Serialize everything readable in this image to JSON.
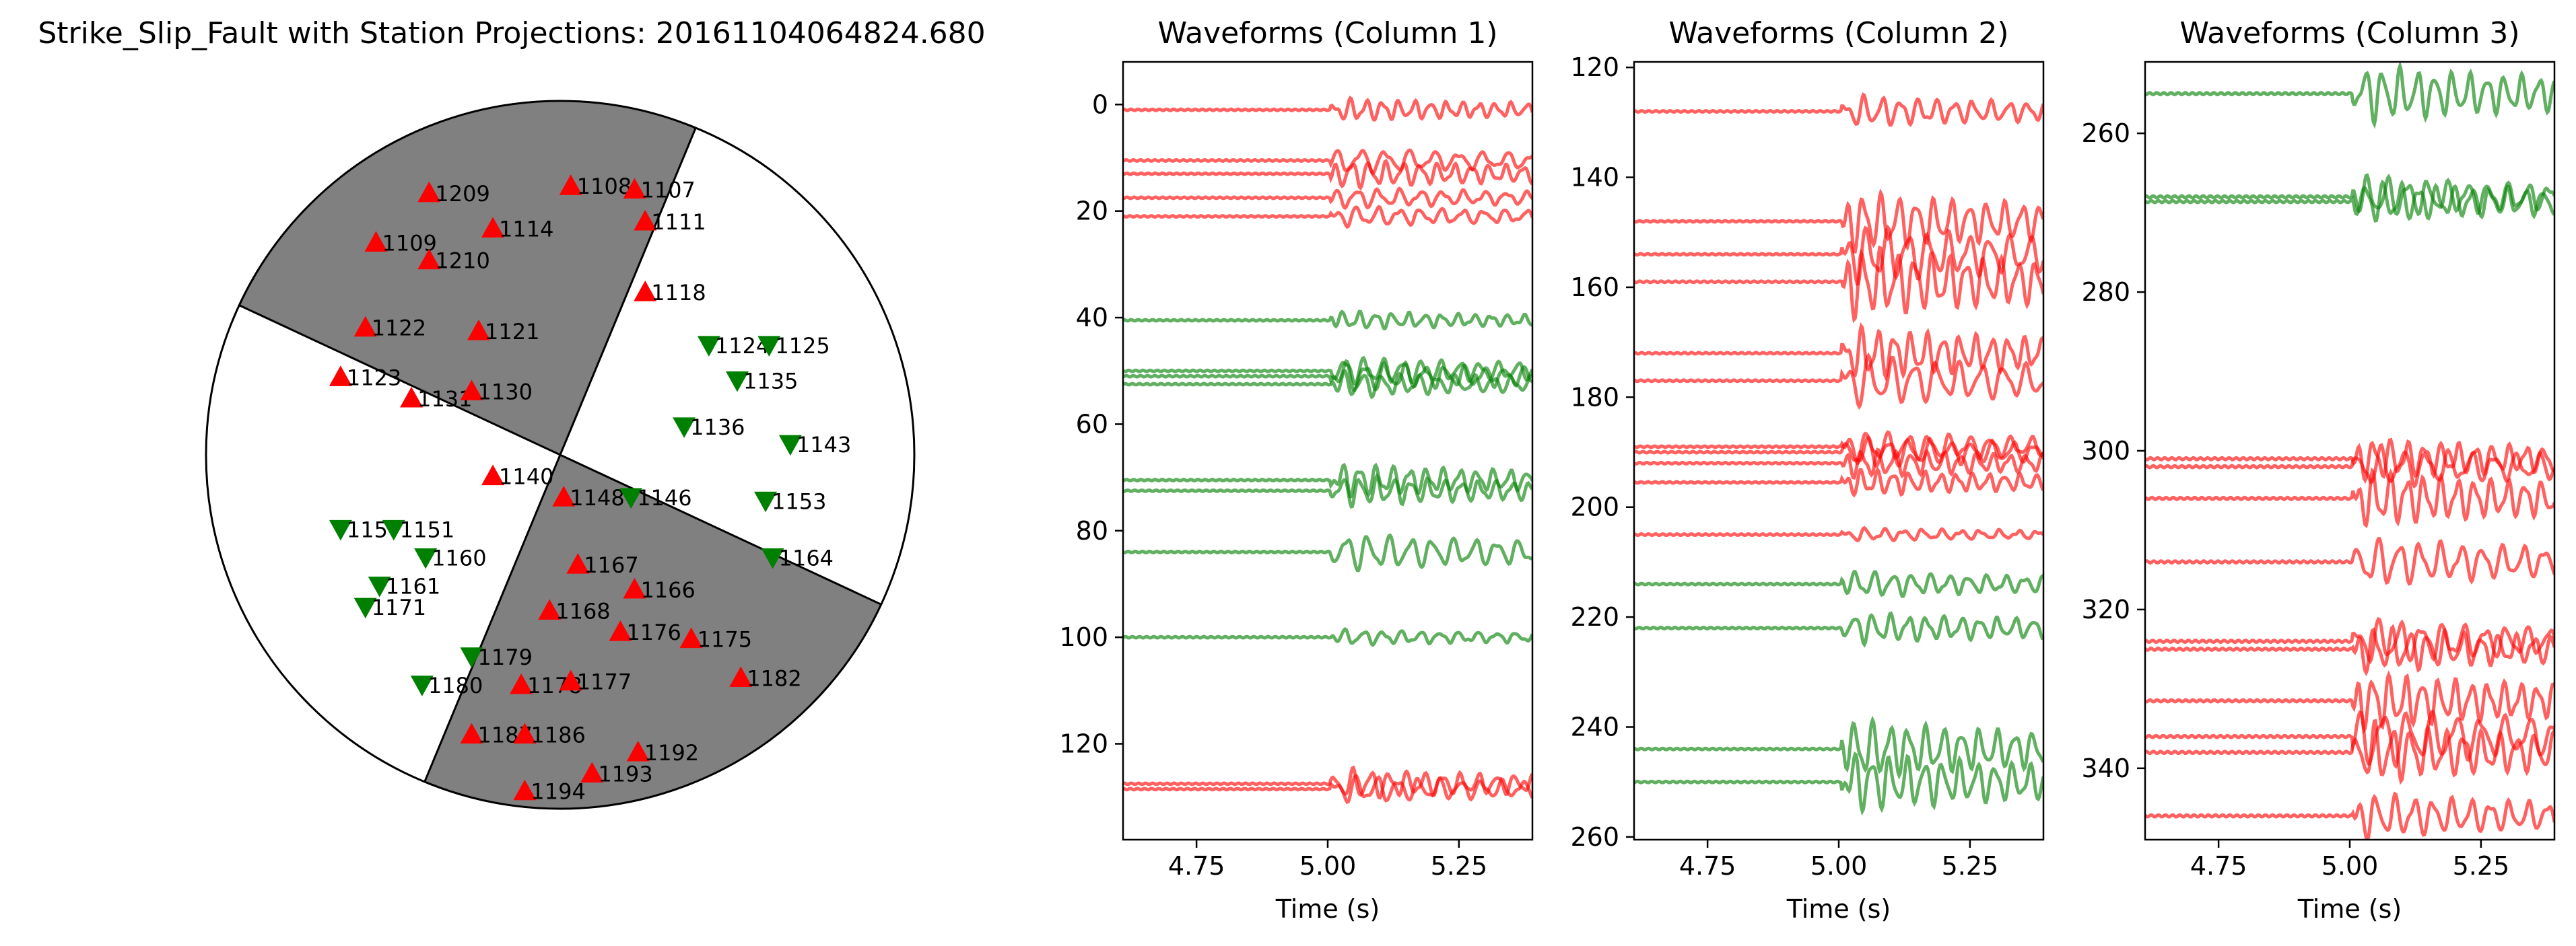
{
  "chart_data": [
    {
      "type": "scatter",
      "title": "Strike_Slip_Fault with Station Projections: 20161104064824.680",
      "colors": {
        "compression": "#ff0000",
        "dilatation": "#008000",
        "shaded_quadrant": "#808080"
      },
      "compression_stations": [
        {
          "label": "1209",
          "x": -0.37,
          "y": 0.74
        },
        {
          "label": "1108",
          "x": 0.03,
          "y": 0.76
        },
        {
          "label": "1107",
          "x": 0.21,
          "y": 0.75
        },
        {
          "label": "1114",
          "x": -0.19,
          "y": 0.64
        },
        {
          "label": "1111",
          "x": 0.24,
          "y": 0.66
        },
        {
          "label": "1109",
          "x": -0.52,
          "y": 0.6
        },
        {
          "label": "1210",
          "x": -0.37,
          "y": 0.55
        },
        {
          "label": "1118",
          "x": 0.24,
          "y": 0.46
        },
        {
          "label": "1122",
          "x": -0.55,
          "y": 0.36
        },
        {
          "label": "1121",
          "x": -0.23,
          "y": 0.35
        },
        {
          "label": "1123",
          "x": -0.62,
          "y": 0.22
        },
        {
          "label": "1131",
          "x": -0.42,
          "y": 0.16
        },
        {
          "label": "1130",
          "x": -0.25,
          "y": 0.18
        },
        {
          "label": "1140",
          "x": -0.19,
          "y": -0.06
        },
        {
          "label": "1148",
          "x": 0.01,
          "y": -0.12
        },
        {
          "label": "1167",
          "x": 0.05,
          "y": -0.31
        },
        {
          "label": "1166",
          "x": 0.21,
          "y": -0.38
        },
        {
          "label": "1168",
          "x": -0.03,
          "y": -0.44
        },
        {
          "label": "1176",
          "x": 0.17,
          "y": -0.5
        },
        {
          "label": "1175",
          "x": 0.37,
          "y": -0.52
        },
        {
          "label": "1182",
          "x": 0.51,
          "y": -0.63
        },
        {
          "label": "1178",
          "x": -0.11,
          "y": -0.65
        },
        {
          "label": "1177",
          "x": 0.03,
          "y": -0.64
        },
        {
          "label": "1187",
          "x": -0.25,
          "y": -0.79
        },
        {
          "label": "1186",
          "x": -0.1,
          "y": -0.79
        },
        {
          "label": "1192",
          "x": 0.22,
          "y": -0.84
        },
        {
          "label": "1193",
          "x": 0.09,
          "y": -0.9
        },
        {
          "label": "1194",
          "x": -0.1,
          "y": -0.95
        }
      ],
      "dilatation_stations": [
        {
          "label": "1124",
          "x": 0.42,
          "y": 0.31
        },
        {
          "label": "1125",
          "x": 0.59,
          "y": 0.31
        },
        {
          "label": "1135",
          "x": 0.5,
          "y": 0.21
        },
        {
          "label": "1136",
          "x": 0.35,
          "y": 0.08
        },
        {
          "label": "1143",
          "x": 0.65,
          "y": 0.03
        },
        {
          "label": "1146",
          "x": 0.2,
          "y": -0.12
        },
        {
          "label": "1153",
          "x": 0.58,
          "y": -0.13
        },
        {
          "label": "1164",
          "x": 0.6,
          "y": -0.29
        },
        {
          "label": "1157",
          "x": -0.62,
          "y": -0.21
        },
        {
          "label": "1151",
          "x": -0.47,
          "y": -0.21
        },
        {
          "label": "1160",
          "x": -0.38,
          "y": -0.29
        },
        {
          "label": "1161",
          "x": -0.51,
          "y": -0.37
        },
        {
          "label": "1171",
          "x": -0.55,
          "y": -0.43
        },
        {
          "label": "1179",
          "x": -0.25,
          "y": -0.57
        },
        {
          "label": "1180",
          "x": -0.39,
          "y": -0.65
        }
      ]
    },
    {
      "type": "line",
      "title": "Waveforms (Column 1)",
      "xlabel": "Time (s)",
      "xlim": [
        4.61,
        5.39
      ],
      "ylim": [
        138,
        -8
      ],
      "xticks": [
        "4.75",
        "5.00",
        "5.25"
      ],
      "yticks": [
        "0",
        "20",
        "40",
        "60",
        "80",
        "100",
        "120"
      ],
      "traces": [
        {
          "offset": 1,
          "polarity": "compression",
          "amp": 1.8
        },
        {
          "offset": 10.5,
          "polarity": "compression",
          "amp": 2.0
        },
        {
          "offset": 13,
          "polarity": "compression",
          "amp": 2.2
        },
        {
          "offset": 17.5,
          "polarity": "compression",
          "amp": 1.6
        },
        {
          "offset": 21,
          "polarity": "compression",
          "amp": 1.6
        },
        {
          "offset": 40.5,
          "polarity": "dilatation",
          "amp": 1.4
        },
        {
          "offset": 50,
          "polarity": "dilatation",
          "amp": 2.2
        },
        {
          "offset": 51,
          "polarity": "dilatation",
          "amp": 2.4
        },
        {
          "offset": 52.5,
          "polarity": "dilatation",
          "amp": 2.0
        },
        {
          "offset": 70.5,
          "polarity": "dilatation",
          "amp": 2.6
        },
        {
          "offset": 72.5,
          "polarity": "dilatation",
          "amp": 2.4
        },
        {
          "offset": 84,
          "polarity": "dilatation",
          "amp": 3.0
        },
        {
          "offset": 100,
          "polarity": "dilatation",
          "amp": 1.2
        },
        {
          "offset": 127.5,
          "polarity": "compression",
          "amp": 2.4
        },
        {
          "offset": 128.5,
          "polarity": "compression",
          "amp": 2.2
        }
      ]
    },
    {
      "type": "line",
      "title": "Waveforms (Column 2)",
      "xlabel": "Time (s)",
      "xlim": [
        4.61,
        5.39
      ],
      "ylim": [
        260.5,
        119
      ],
      "xticks": [
        "4.75",
        "5.00",
        "5.25"
      ],
      "yticks": [
        "120",
        "140",
        "160",
        "180",
        "200",
        "220",
        "240",
        "260"
      ],
      "traces": [
        {
          "offset": 128,
          "polarity": "compression",
          "amp": 2.4
        },
        {
          "offset": 148,
          "polarity": "compression",
          "amp": 4.5
        },
        {
          "offset": 154,
          "polarity": "compression",
          "amp": 4.5
        },
        {
          "offset": 159,
          "polarity": "compression",
          "amp": 5.5
        },
        {
          "offset": 172,
          "polarity": "compression",
          "amp": 4.0
        },
        {
          "offset": 177,
          "polarity": "compression",
          "amp": 4.0
        },
        {
          "offset": 189,
          "polarity": "compression",
          "amp": 2.4
        },
        {
          "offset": 190,
          "polarity": "compression",
          "amp": 2.4
        },
        {
          "offset": 192,
          "polarity": "compression",
          "amp": 2.2
        },
        {
          "offset": 195.5,
          "polarity": "compression",
          "amp": 2.0
        },
        {
          "offset": 205,
          "polarity": "compression",
          "amp": 1.0
        },
        {
          "offset": 214,
          "polarity": "dilatation",
          "amp": 2.0
        },
        {
          "offset": 222,
          "polarity": "dilatation",
          "amp": 2.4
        },
        {
          "offset": 244,
          "polarity": "dilatation",
          "amp": 4.5
        },
        {
          "offset": 250,
          "polarity": "dilatation",
          "amp": 4.5
        }
      ]
    },
    {
      "type": "line",
      "title": "Waveforms (Column 3)",
      "xlabel": "Time (s)",
      "xlim": [
        4.61,
        5.39
      ],
      "ylim": [
        349,
        251
      ],
      "xticks": [
        "4.75",
        "5.00",
        "5.25"
      ],
      "yticks": [
        "260",
        "280",
        "300",
        "320",
        "340"
      ],
      "traces": [
        {
          "offset": 255,
          "polarity": "dilatation",
          "amp": 3.0
        },
        {
          "offset": 268,
          "polarity": "dilatation",
          "amp": 2.2
        },
        {
          "offset": 268.6,
          "polarity": "dilatation",
          "amp": 2.2
        },
        {
          "offset": 301,
          "polarity": "compression",
          "amp": 2.2
        },
        {
          "offset": 302,
          "polarity": "compression",
          "amp": 2.2
        },
        {
          "offset": 306,
          "polarity": "compression",
          "amp": 3.0
        },
        {
          "offset": 314,
          "polarity": "compression",
          "amp": 2.6
        },
        {
          "offset": 324,
          "polarity": "compression",
          "amp": 2.4
        },
        {
          "offset": 325,
          "polarity": "compression",
          "amp": 2.4
        },
        {
          "offset": 331.5,
          "polarity": "compression",
          "amp": 3.0
        },
        {
          "offset": 336,
          "polarity": "compression",
          "amp": 3.2
        },
        {
          "offset": 338,
          "polarity": "compression",
          "amp": 3.2
        },
        {
          "offset": 346,
          "polarity": "compression",
          "amp": 2.4
        }
      ]
    }
  ]
}
